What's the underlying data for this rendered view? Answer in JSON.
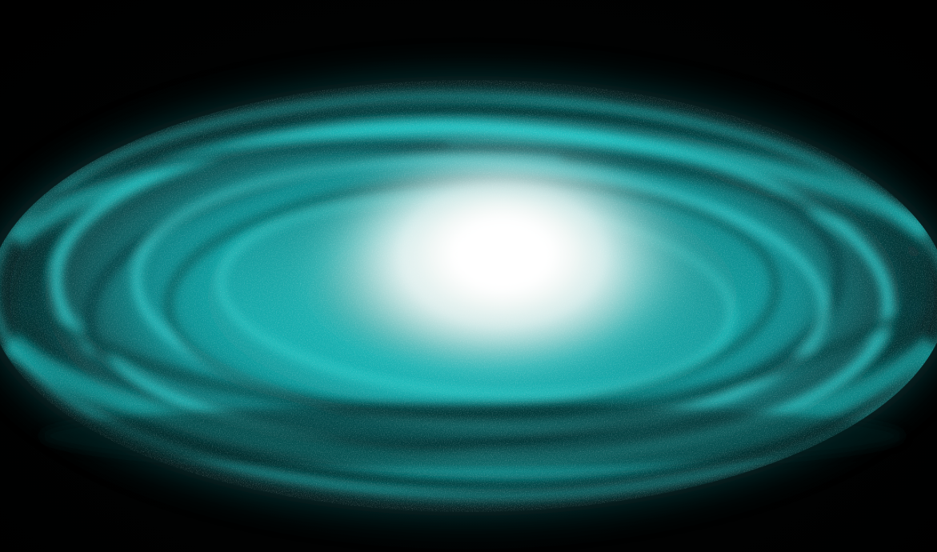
{
  "image": {
    "subject": "galaxy-disk",
    "colors": {
      "background": "#000000",
      "disk_main": "#19c6c6",
      "disk_bright": "#3fe8e8",
      "disk_dark": "#0a3a3c",
      "core": "#ffffff",
      "core_glow": "#e8f4f2"
    }
  }
}
